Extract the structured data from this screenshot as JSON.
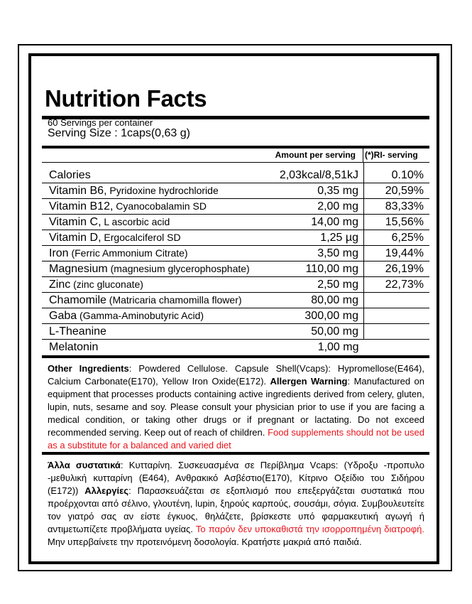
{
  "title": "Nutrition Facts",
  "servings_per_container": "60 Servings per container",
  "serving_size": "Serving Size : 1caps(0,63 g)",
  "headers": {
    "amount": "Amount per serving",
    "ri": "(*)RI- serving"
  },
  "rows": [
    {
      "name": "Calories",
      "detail": "",
      "amount": "2,03kcal/8,51kJ",
      "ri": "0.10%"
    },
    {
      "name": "Vitamin B6,",
      "detail": " Pyridoxine hydrochloride",
      "amount": "0,35 mg",
      "ri": "20,59%"
    },
    {
      "name": "Vitamin B12,",
      "detail": " Cyanocobalamin SD",
      "amount": "2,00 mg",
      "ri": "83,33%"
    },
    {
      "name": "Vitamin C,",
      "detail": " L ascorbic acid",
      "amount": "14,00 mg",
      "ri": "15,56%"
    },
    {
      "name": "Vitamin D,",
      "detail": " Ergocalciferol SD",
      "amount": "1,25 µg",
      "ri": "6,25%"
    },
    {
      "name": "Iron",
      "detail": " (Ferric Ammonium Citrate)",
      "amount": "3,50 mg",
      "ri": "19,44%"
    },
    {
      "name": "Magnesium",
      "detail": " (magnesium glycerophosphate)",
      "amount": "110,00 mg",
      "ri": "26,19%"
    },
    {
      "name": "Zinc",
      "detail": " (zinc gluconate)",
      "amount": "2,50 mg",
      "ri": "22,73%"
    },
    {
      "name": "Chamomile",
      "detail": " (Matricaria chamomilla flower)",
      "amount": "80,00 mg",
      "ri": ""
    },
    {
      "name": "Gaba",
      "detail": " (Gamma-Aminobutyric Acid)",
      "amount": "300,00 mg",
      "ri": ""
    },
    {
      "name": "L-Theanine",
      "detail": "",
      "amount": "50,00 mg",
      "ri": ""
    },
    {
      "name": "Melatonin",
      "detail": "",
      "amount": "1,00 mg",
      "ri": ""
    }
  ],
  "english": {
    "other_label": "Other Ingredients",
    "other_text": ": Powdered Cellulose. Capsule Shell(Vcaps): Hypromellose(E464), Calcium Carbonate(E170), Yellow Iron Oxide(E172). ",
    "allergen_label": "Allergen Warning",
    "allergen_text": ": Manufactured on equipment that processes products containing active ingredients derived from celery, gluten, lupin, nuts, sesame and soy. Please consult your physician prior to use if you are facing a medical condition, or taking other drugs or if pregnant or lactating. Do not exceed recommended serving. Keep out of reach of children. ",
    "warning_red": "Food supplements should not be used as a substitute for a balanced and varied diet"
  },
  "greek": {
    "other_label": "Άλλα συστατικά",
    "other_text": ": Κυτταρίνη. Συσκευασμένα σε Περίβλημα Vcaps: (Υδροξυ -προπυλο -μεθυλική κυτταρίνη (E464), Ανθρακικό Ασβέστιο(E170), Κίτρινο Οξείδιο του Σιδήρου (E172)) ",
    "allergen_label": "Αλλεργίες",
    "allergen_text": ": Παρασκευάζεται σε εξοπλισμό που επεξεργάζεται συστατικά που προέρχονται από σέλινο, γλουτένη, lupin, ξηρούς καρπούς, σουσάμι, σόγια. Συμβουλευτείτε τον γιατρό σας αν είστε έγκυος, θηλάζετε, βρίσκεστε υπό φαρμακευτική αγωγή ή αντιμετωπίζετε προβλήματα υγείας. ",
    "warning_red": "Το παρόν δεν υποκαθιστά την ισορροπημένη διατροφή.",
    "tail": " Μην υπερβαίνετε την προτεινόμενη δοσολογία. Κρατήστε μακριά από παιδιά."
  },
  "colors": {
    "warning": "#e8141b",
    "text": "#000000"
  }
}
